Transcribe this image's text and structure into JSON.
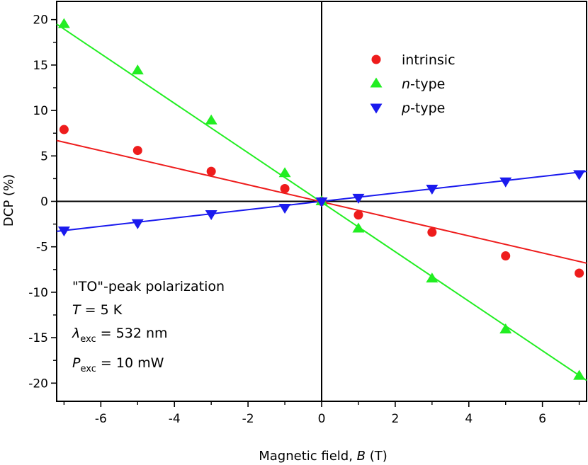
{
  "chart_data": {
    "type": "scatter",
    "xlabel": "Magnetic field, ",
    "xlabel_var": "B",
    "xlabel_unit": " (T)",
    "ylabel": "DCP (%)",
    "xlim": [
      -7.2,
      7.2
    ],
    "ylim": [
      -22,
      22
    ],
    "x_ticks": [
      -6,
      -4,
      -2,
      0,
      2,
      4,
      6
    ],
    "x_tick_labels": [
      "-6",
      "-4",
      "-2",
      "0",
      "2",
      "4",
      "6"
    ],
    "y_ticks": [
      20,
      15,
      10,
      5,
      0,
      -5,
      -10,
      -15,
      -20
    ],
    "y_tick_labels": [
      "20",
      "15",
      "10",
      "5",
      "0",
      "-5",
      "-10",
      "-15",
      "-20"
    ],
    "zero_lines": true,
    "grid": false,
    "legend_position": "top-right",
    "series": [
      {
        "name": "intrinsic",
        "marker": "circle",
        "color": "#ee1c1c",
        "x": [
          -7,
          -5,
          -3,
          -1,
          0,
          1,
          3,
          5,
          7
        ],
        "y": [
          7.9,
          5.6,
          3.3,
          1.4,
          0.0,
          -1.5,
          -3.4,
          -6.0,
          -7.9
        ],
        "fit": [
          [
            -7.2,
            6.7
          ],
          [
            7.2,
            -6.8
          ]
        ]
      },
      {
        "name": "n-type",
        "name_italic": "n",
        "name_rest": "-type",
        "marker": "triangle-up",
        "color": "#22ee22",
        "x": [
          -7,
          -5,
          -3,
          -1,
          0,
          1,
          3,
          5,
          7
        ],
        "y": [
          19.5,
          14.4,
          8.9,
          3.1,
          0.0,
          -3.0,
          -8.5,
          -14.1,
          -19.2
        ],
        "fit": [
          [
            -7.2,
            19.5
          ],
          [
            7.2,
            -19.7
          ]
        ]
      },
      {
        "name": "p-type",
        "name_italic": "p",
        "name_rest": "-type",
        "marker": "triangle-down",
        "color": "#1a1aee",
        "x": [
          -7,
          -5,
          -3,
          -1,
          0,
          1,
          3,
          5,
          7
        ],
        "y": [
          -3.2,
          -2.4,
          -1.4,
          -0.7,
          0.0,
          0.4,
          1.4,
          2.2,
          3.0
        ],
        "fit": [
          [
            -7.2,
            -3.3
          ],
          [
            7.2,
            3.3
          ]
        ]
      }
    ],
    "annotation": {
      "line1": "\"TO\"-peak polarization",
      "line2_var": "T",
      "line2_rest": " = 5 K",
      "line3_var": "λ",
      "line3_sub": "exc",
      "line3_rest": " = 532 nm",
      "line4_var": "P",
      "line4_sub": "exc",
      "line4_rest": " = 10 mW"
    }
  }
}
